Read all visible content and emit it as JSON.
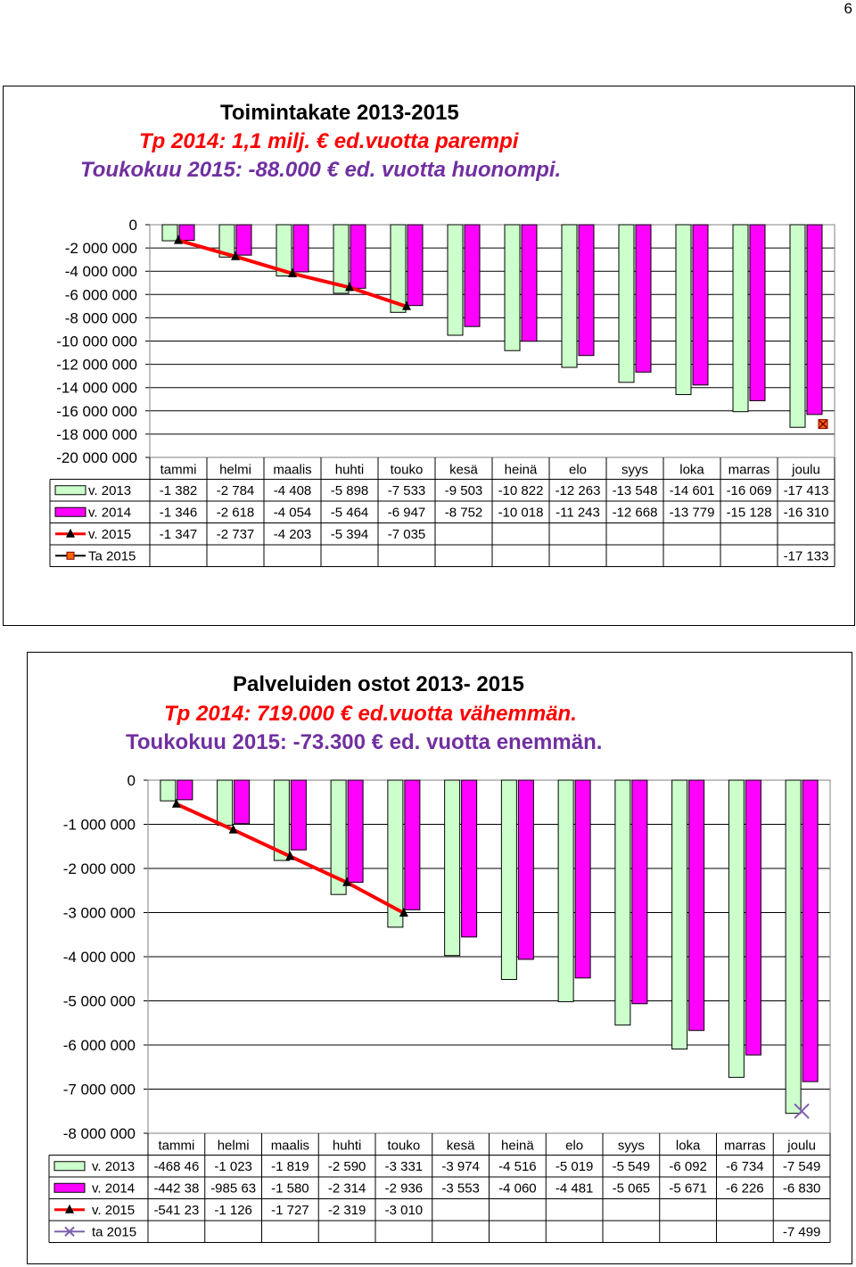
{
  "page_number": "6",
  "colors": {
    "s2013": "#ccffcc",
    "s2014": "#ff00ff",
    "s2015": "#ff0000",
    "target": "#ff0000",
    "target2": "#7f60b0"
  },
  "charts": [
    {
      "title": "Toimintakate 2013-2015",
      "subtitle1": "Tp 2014: 1,1 milj. € ed.vuotta parempi",
      "subtitle2": "Toukokuu 2015: -88.000 € ed. vuotta huonompi.",
      "y_ticks": [
        "0",
        "-2 000 000",
        "-4 000 000",
        "-6 000 000",
        "-8 000 000",
        "-10 000 000",
        "-12 000 000",
        "-14 000 000",
        "-16 000 000",
        "-18 000 000",
        "-20 000 000"
      ],
      "table": {
        "months": [
          "tammi",
          "helmi",
          "maalis",
          "huhti",
          "touko",
          "kesä",
          "heinä",
          "elo",
          "syys",
          "loka",
          "marras",
          "joulu"
        ],
        "rows": [
          {
            "label": "v. 2013",
            "cells": [
              "-1 382",
              "-2 784",
              "-4 408",
              "-5 898",
              "-7 533",
              "-9 503",
              "-10 822",
              "-12 263",
              "-13 548",
              "-14 601",
              "-16 069",
              "-17 413"
            ]
          },
          {
            "label": "v. 2014",
            "cells": [
              "-1 346",
              "-2 618",
              "-4 054",
              "-5 464",
              "-6 947",
              "-8 752",
              "-10 018",
              "-11 243",
              "-12 668",
              "-13 779",
              "-15 128",
              "-16 310"
            ]
          },
          {
            "label": "v. 2015",
            "cells": [
              "-1 347",
              "-2 737",
              "-4 203",
              "-5 394",
              "-7 035",
              "",
              "",
              "",
              "",
              "",
              "",
              ""
            ]
          },
          {
            "label": "Ta 2015",
            "cells": [
              "",
              "",
              "",
              "",
              "",
              "",
              "",
              "",
              "",
              "",
              "",
              "-17 133"
            ]
          }
        ]
      }
    },
    {
      "title": "Palveluiden ostot 2013- 2015",
      "subtitle1": "Tp 2014: 719.000 € ed.vuotta vähemmän.",
      "subtitle2": "Toukokuu 2015: -73.300 € ed. vuotta enemmän.",
      "y_ticks": [
        "0",
        "-1 000 000",
        "-2 000 000",
        "-3 000 000",
        "-4 000 000",
        "-5 000 000",
        "-6 000 000",
        "-7 000 000",
        "-8 000 000"
      ],
      "table": {
        "months": [
          "tammi",
          "helmi",
          "maalis",
          "huhti",
          "touko",
          "kesä",
          "heinä",
          "elo",
          "syys",
          "loka",
          "marras",
          "joulu"
        ],
        "rows": [
          {
            "label": "v. 2013",
            "cells": [
              "-468 46",
              "-1 023",
              "-1 819",
              "-2 590",
              "-3 331",
              "-3 974",
              "-4 516",
              "-5 019",
              "-5 549",
              "-6 092",
              "-6 734",
              "-7 549"
            ]
          },
          {
            "label": "v. 2014",
            "cells": [
              "-442 38",
              "-985 63",
              "-1 580",
              "-2 314",
              "-2 936",
              "-3 553",
              "-4 060",
              "-4 481",
              "-5 065",
              "-5 671",
              "-6 226",
              "-6 830"
            ]
          },
          {
            "label": "v. 2015",
            "cells": [
              "-541 23",
              "-1 126",
              "-1 727",
              "-2 319",
              "-3 010",
              "",
              "",
              "",
              "",
              "",
              "",
              ""
            ]
          },
          {
            "label": "ta 2015",
            "cells": [
              "",
              "",
              "",
              "",
              "",
              "",
              "",
              "",
              "",
              "",
              "",
              "-7 499"
            ]
          }
        ]
      }
    }
  ],
  "chart_data": [
    {
      "type": "bar",
      "title": "Toimintakate 2013-2015",
      "categories": [
        "tammi",
        "helmi",
        "maalis",
        "huhti",
        "touko",
        "kesä",
        "heinä",
        "elo",
        "syys",
        "loka",
        "marras",
        "joulu"
      ],
      "ylim": [
        -20000000,
        0
      ],
      "grid": true,
      "legend": "table-left",
      "series": [
        {
          "name": "v. 2013",
          "type": "bar",
          "values": [
            -1382000,
            -2784000,
            -4408000,
            -5898000,
            -7533000,
            -9503000,
            -10822000,
            -12263000,
            -13548000,
            -14601000,
            -16069000,
            -17413000
          ]
        },
        {
          "name": "v. 2014",
          "type": "bar",
          "values": [
            -1346000,
            -2618000,
            -4054000,
            -5464000,
            -6947000,
            -8752000,
            -10018000,
            -11243000,
            -12668000,
            -13779000,
            -15128000,
            -16310000
          ]
        },
        {
          "name": "v. 2015",
          "type": "line",
          "values": [
            -1347000,
            -2737000,
            -4203000,
            -5394000,
            -7035000,
            null,
            null,
            null,
            null,
            null,
            null,
            null
          ]
        },
        {
          "name": "Ta 2015",
          "type": "marker",
          "values": [
            null,
            null,
            null,
            null,
            null,
            null,
            null,
            null,
            null,
            null,
            null,
            -17133000
          ]
        }
      ]
    },
    {
      "type": "bar",
      "title": "Palveluiden ostot 2013- 2015",
      "categories": [
        "tammi",
        "helmi",
        "maalis",
        "huhti",
        "touko",
        "kesä",
        "heinä",
        "elo",
        "syys",
        "loka",
        "marras",
        "joulu"
      ],
      "ylim": [
        -8000000,
        0
      ],
      "grid": true,
      "legend": "table-left",
      "series": [
        {
          "name": "v. 2013",
          "type": "bar",
          "values": [
            -468460,
            -1023000,
            -1819000,
            -2590000,
            -3331000,
            -3974000,
            -4516000,
            -5019000,
            -5549000,
            -6092000,
            -6734000,
            -7549000
          ]
        },
        {
          "name": "v. 2014",
          "type": "bar",
          "values": [
            -442380,
            -985630,
            -1580000,
            -2314000,
            -2936000,
            -3553000,
            -4060000,
            -4481000,
            -5065000,
            -5671000,
            -6226000,
            -6830000
          ]
        },
        {
          "name": "v. 2015",
          "type": "line",
          "values": [
            -541230,
            -1126000,
            -1727000,
            -2319000,
            -3010000,
            null,
            null,
            null,
            null,
            null,
            null,
            null
          ]
        },
        {
          "name": "ta 2015",
          "type": "marker",
          "values": [
            null,
            null,
            null,
            null,
            null,
            null,
            null,
            null,
            null,
            null,
            null,
            -7499000
          ]
        }
      ]
    }
  ]
}
